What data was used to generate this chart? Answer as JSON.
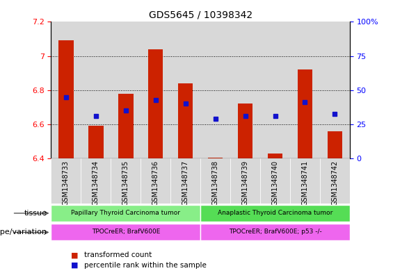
{
  "title": "GDS5645 / 10398342",
  "samples": [
    "GSM1348733",
    "GSM1348734",
    "GSM1348735",
    "GSM1348736",
    "GSM1348737",
    "GSM1348738",
    "GSM1348739",
    "GSM1348740",
    "GSM1348741",
    "GSM1348742"
  ],
  "bar_values": [
    7.09,
    6.59,
    6.78,
    7.04,
    6.84,
    6.405,
    6.72,
    6.43,
    6.92,
    6.56
  ],
  "bar_bottom": 6.4,
  "percentile_values": [
    6.76,
    6.65,
    6.68,
    6.74,
    6.72,
    6.63,
    6.65,
    6.65,
    6.73,
    6.66
  ],
  "ylim_left": [
    6.4,
    7.2
  ],
  "ylim_right": [
    0,
    100
  ],
  "yticks_left": [
    6.4,
    6.6,
    6.8,
    7.0,
    7.2
  ],
  "yticks_right": [
    0,
    25,
    50,
    75,
    100
  ],
  "ytick_labels_left": [
    "6.4",
    "6.6",
    "6.8",
    "7",
    "7.2"
  ],
  "ytick_labels_right": [
    "0",
    "25",
    "50",
    "75",
    "100%"
  ],
  "bar_color": "#cc2200",
  "dot_color": "#1111cc",
  "tissue_groups": [
    {
      "label": "Papillary Thyroid Carcinoma tumor",
      "start": 0,
      "end": 5,
      "color": "#88ee88"
    },
    {
      "label": "Anaplastic Thyroid Carcinoma tumor",
      "start": 5,
      "end": 10,
      "color": "#55dd55"
    }
  ],
  "genotype_groups": [
    {
      "label": "TPOCreER; BrafV600E",
      "start": 0,
      "end": 5,
      "color": "#ee66ee"
    },
    {
      "label": "TPOCreER; BrafV600E; p53 -/-",
      "start": 5,
      "end": 10,
      "color": "#ee66ee"
    }
  ],
  "tissue_label": "tissue",
  "genotype_label": "genotype/variation",
  "legend_items": [
    {
      "label": "transformed count",
      "color": "#cc2200"
    },
    {
      "label": "percentile rank within the sample",
      "color": "#1111cc"
    }
  ],
  "bg_color": "#d8d8d8",
  "grid_ticks": [
    6.6,
    6.8,
    7.0
  ]
}
